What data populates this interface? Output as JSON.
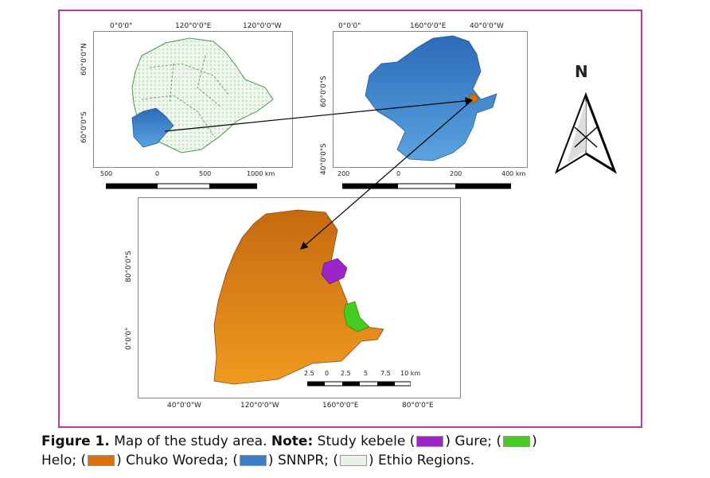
{
  "map1": {
    "top_labels": [
      "0°0'0\"",
      "120°0'0\"E",
      "120°0'0\"W"
    ],
    "left_labels": [
      "60°0'0\"N",
      "60°0'0\"S"
    ],
    "scale_labels": [
      "500",
      "0",
      "500",
      "1000 km"
    ]
  },
  "map2": {
    "top_labels": [
      "0°0'0\"",
      "160°0'0\"E",
      "40°0'0\"W"
    ],
    "left_labels": [
      "60°0'0\"S",
      "40°0'0\"S"
    ],
    "scale_labels": [
      "200",
      "0",
      "200",
      "400 km"
    ]
  },
  "map3": {
    "bottom_labels": [
      "40°0'0\"W",
      "120°0'0\"W",
      "160°0'0\"E",
      "80°0'0\"E"
    ],
    "left_labels": [
      "80°0'0\"S",
      "0°0'0\""
    ],
    "scale_labels": [
      "2.5",
      "0",
      "2.5",
      "5",
      "7.5",
      "10 km"
    ]
  },
  "north_label": "N",
  "caption": {
    "figure_label": "Figure 1.",
    "title": " Map of the study area. ",
    "note_label": "Note:",
    "items": [
      {
        "prefix": " Study kebele (",
        "color": "#9b25c7",
        "text": ") Gure; ("
      },
      {
        "prefix": "",
        "color": "#44cc22",
        "text": ")"
      },
      {
        "prefix": "Helo; (",
        "color": "#d9700f",
        "text": ") Chuko Woreda; ("
      },
      {
        "prefix": "",
        "color": "#3a7ec8",
        "text": ") SNNPR; ("
      },
      {
        "prefix": "",
        "color": "#e8f3e8",
        "text": ") Ethio Regions."
      }
    ]
  },
  "colors": {
    "frame": "#b03aa8",
    "gure": "#9b25c7",
    "helo": "#44cc22",
    "chuko": "#d9700f",
    "snnpr": "#3a7ec8",
    "regions": "#e8f3e8"
  }
}
